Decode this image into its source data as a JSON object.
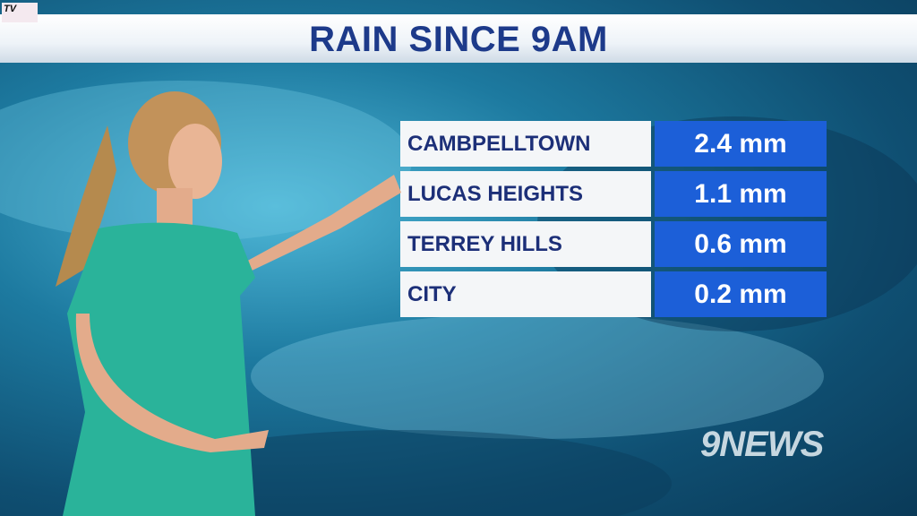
{
  "header": {
    "title": "RAIN SINCE 9AM"
  },
  "table": {
    "rows": [
      [
        "CAMBPELLTOWN",
        "2.4 mm"
      ],
      [
        "LUCAS HEIGHTS",
        "1.1 mm"
      ],
      [
        "TERREY HILLS",
        "0.6 mm"
      ],
      [
        "CITY",
        "0.2 mm"
      ]
    ]
  },
  "logo": "9NEWS",
  "corner_logo": "TV"
}
